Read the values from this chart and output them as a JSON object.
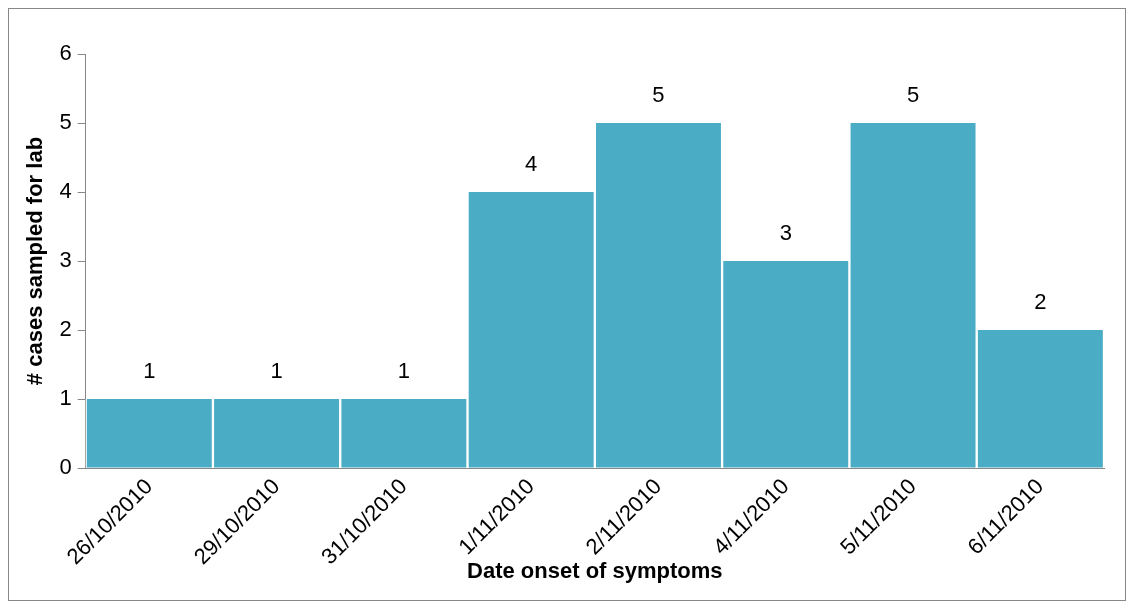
{
  "chart_data": {
    "type": "bar",
    "xlabel": "Date onset of symptoms",
    "ylabel": "# cases sampled for lab",
    "categories": [
      "26/10/2010",
      "29/10/2010",
      "31/10/2010",
      "1/11/2010",
      "2/11/2010",
      "4/11/2010",
      "5/11/2010",
      "6/11/2010"
    ],
    "values": [
      1,
      1,
      1,
      4,
      5,
      3,
      5,
      2
    ],
    "color": "#4bacc6",
    "ylim": [
      0,
      6
    ],
    "yticks": [
      0,
      1,
      2,
      3,
      4,
      5,
      6
    ],
    "grid": false,
    "legend": false,
    "data_labels": true
  }
}
